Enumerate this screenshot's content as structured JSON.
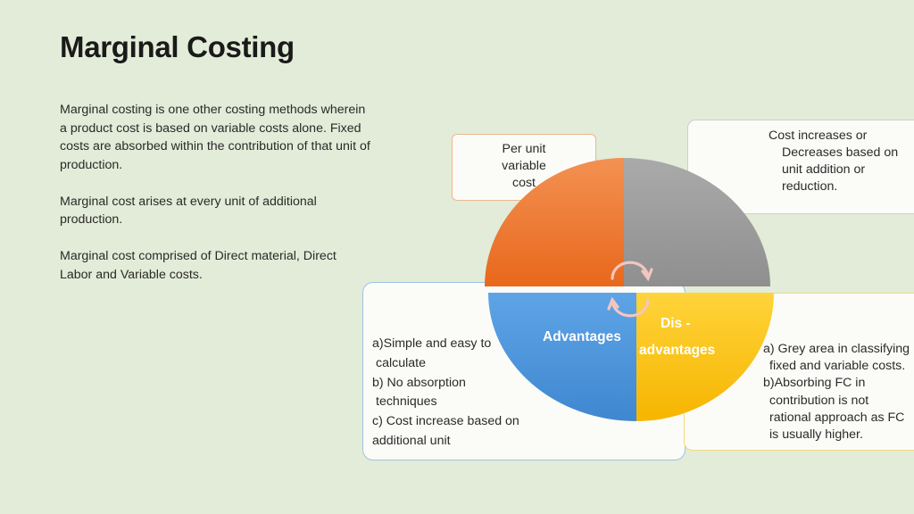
{
  "title": "Marginal Costing",
  "intro": {
    "p1": "Marginal costing is one other costing methods wherein a product cost is based on variable costs alone. Fixed costs are absorbed within the contribution of that unit of production.",
    "p2": "Marginal cost arises at every unit of additional production.",
    "p3": "Marginal cost comprised of Direct material, Direct Labor and Variable costs."
  },
  "diagram": {
    "quadrants": {
      "top_left": {
        "color": "#ef7b2f",
        "callout": [
          "Per unit",
          "variable",
          "cost"
        ]
      },
      "top_right": {
        "color": "#a6a6a6",
        "callout": [
          "Cost increases or",
          "Decreases based on",
          "unit addition or",
          "reduction."
        ]
      },
      "bottom_left": {
        "color": "#4a90d6",
        "label": "Advantages",
        "callout": [
          "a)Simple and easy to",
          "calculate",
          "b) No absorption",
          "techniques",
          "c) Cost increase based on",
          "additional unit"
        ]
      },
      "bottom_right": {
        "color": "#fbc21a",
        "label_line1": "Dis -",
        "label_line2": "advantages",
        "callout": [
          "a) Grey area in classifying",
          "fixed and variable costs.",
          "b)Absorbing FC in",
          "contribution is not",
          "rational approach as FC",
          "is usually higher."
        ]
      }
    },
    "center_icon": "circular-arrows-icon"
  }
}
